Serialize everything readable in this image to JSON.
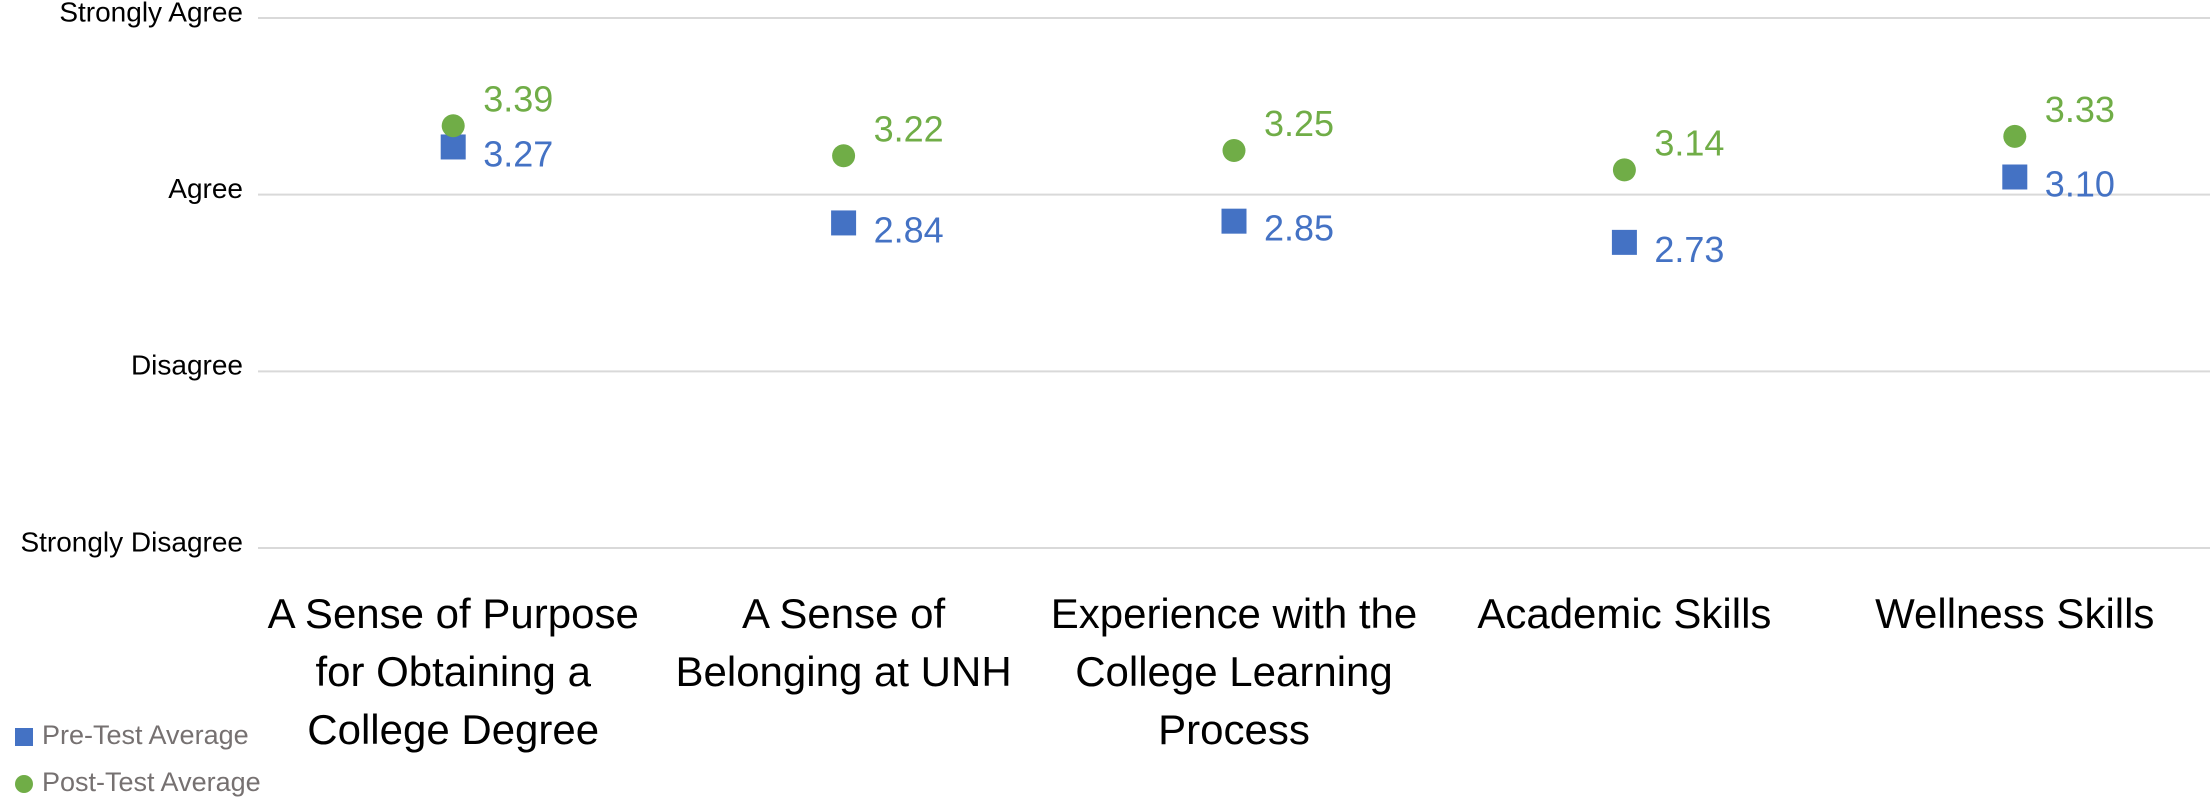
{
  "chart_data": {
    "type": "scatter",
    "categories": [
      "A Sense of Purpose for Obtaining a College Degree",
      "A Sense of Belonging at UNH",
      "Experience with the College Learning Process",
      "Academic Skills",
      "Wellness Skills"
    ],
    "series": [
      {
        "name": "Pre-Test Average",
        "color": "#4472c4",
        "marker": "square",
        "values": [
          3.27,
          2.84,
          2.85,
          2.73,
          3.1
        ],
        "value_labels": [
          "3.27",
          "2.84",
          "2.85",
          "2.73",
          "3.10"
        ]
      },
      {
        "name": "Post-Test Average",
        "color": "#70ad47",
        "marker": "circle",
        "values": [
          3.39,
          3.22,
          3.25,
          3.14,
          3.33
        ],
        "value_labels": [
          "3.39",
          "3.22",
          "3.25",
          "3.14",
          "3.33"
        ]
      }
    ],
    "ylim": [
      1,
      4
    ],
    "yticks": [
      {
        "value": 1,
        "label": "Strongly Disagree"
      },
      {
        "value": 2,
        "label": "Disagree"
      },
      {
        "value": 3,
        "label": "Agree"
      },
      {
        "value": 4,
        "label": "Strongly Agree"
      }
    ],
    "grid": true,
    "legend": "bottom-left"
  }
}
